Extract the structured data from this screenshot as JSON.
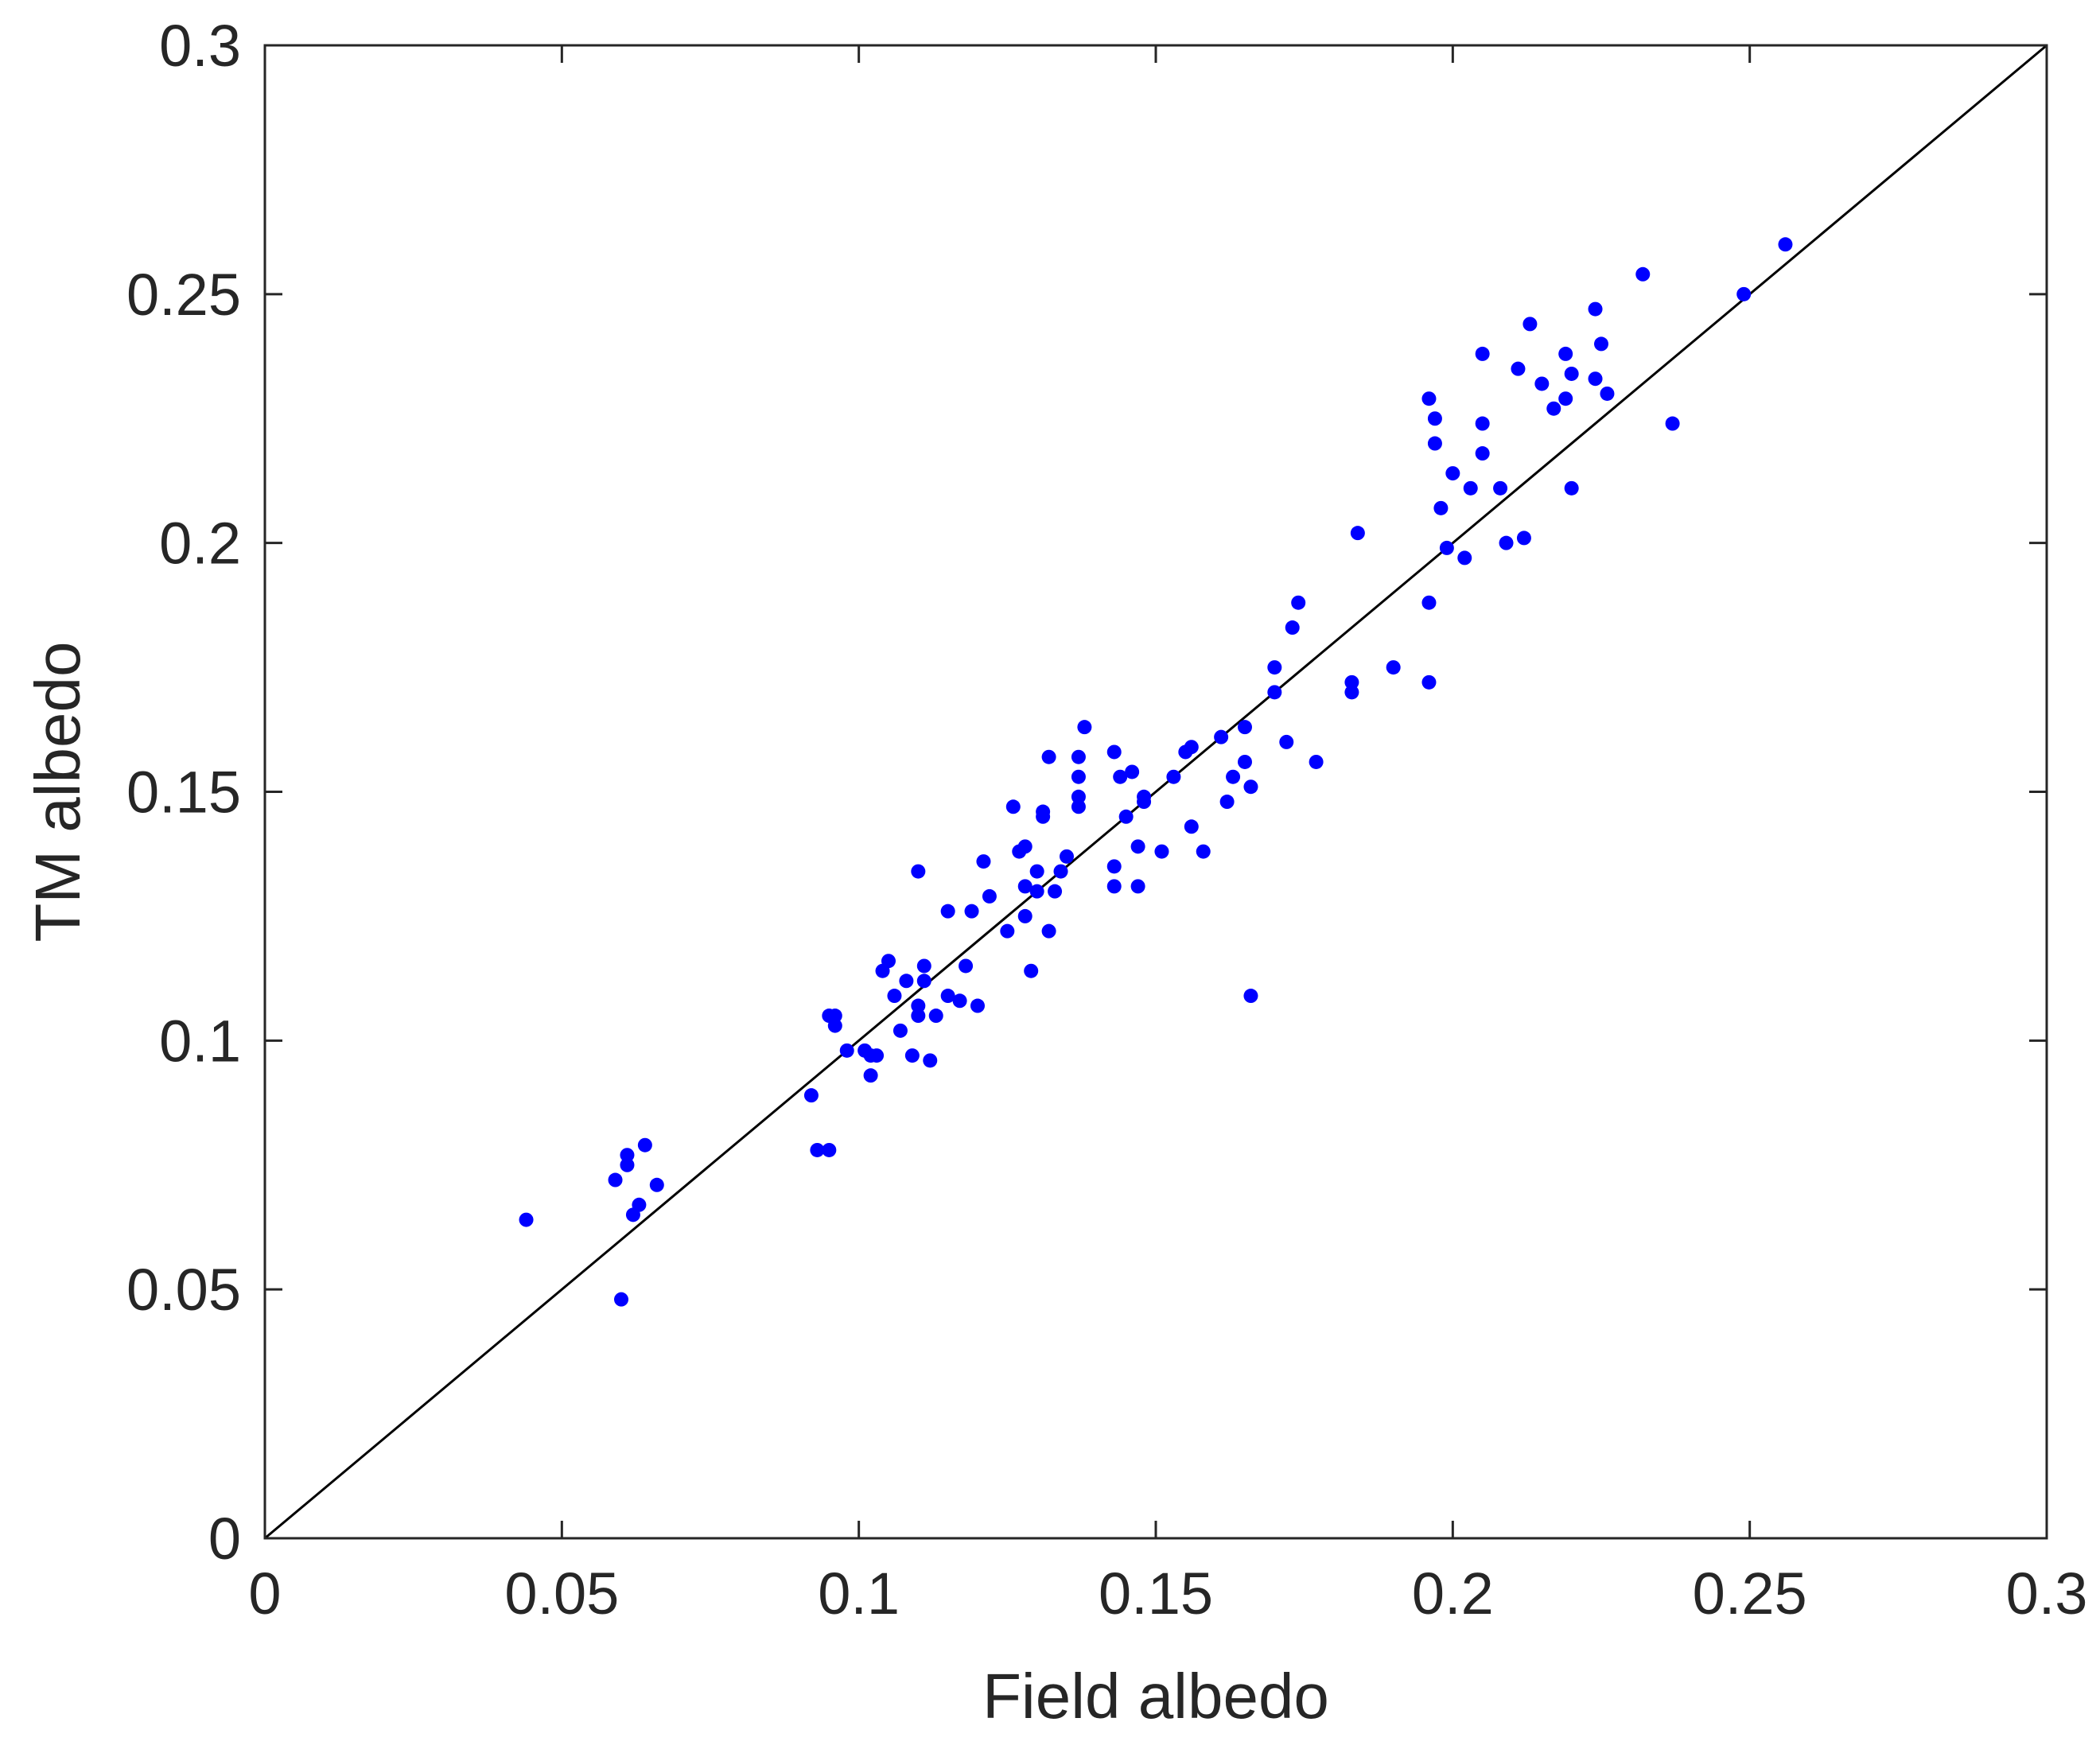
{
  "chart_data": {
    "type": "scatter",
    "xlabel": "Field albedo",
    "ylabel": "TM albedo",
    "xlim": [
      0,
      0.3
    ],
    "ylim": [
      0,
      0.3
    ],
    "xticks": [
      "0",
      "0.05",
      "0.1",
      "0.15",
      "0.2",
      "0.25",
      "0.3"
    ],
    "yticks": [
      "0",
      "0.05",
      "0.1",
      "0.15",
      "0.2",
      "0.25",
      "0.3"
    ],
    "grid": false,
    "marker_color": "#0000ff",
    "reference_line": {
      "x": [
        0,
        0.3
      ],
      "y": [
        0,
        0.3
      ],
      "color": "#000000"
    },
    "series": [
      {
        "points": [
          [
            0.044,
            0.064
          ],
          [
            0.059,
            0.072
          ],
          [
            0.06,
            0.048
          ],
          [
            0.061,
            0.075
          ],
          [
            0.061,
            0.077
          ],
          [
            0.062,
            0.065
          ],
          [
            0.063,
            0.067
          ],
          [
            0.064,
            0.079
          ],
          [
            0.066,
            0.071
          ],
          [
            0.092,
            0.089
          ],
          [
            0.093,
            0.078
          ],
          [
            0.095,
            0.078
          ],
          [
            0.095,
            0.105
          ],
          [
            0.096,
            0.103
          ],
          [
            0.096,
            0.105
          ],
          [
            0.098,
            0.098
          ],
          [
            0.101,
            0.098
          ],
          [
            0.102,
            0.097
          ],
          [
            0.102,
            0.093
          ],
          [
            0.103,
            0.097
          ],
          [
            0.104,
            0.114
          ],
          [
            0.105,
            0.116
          ],
          [
            0.106,
            0.109
          ],
          [
            0.107,
            0.102
          ],
          [
            0.108,
            0.112
          ],
          [
            0.109,
            0.097
          ],
          [
            0.11,
            0.107
          ],
          [
            0.11,
            0.105
          ],
          [
            0.11,
            0.134
          ],
          [
            0.111,
            0.112
          ],
          [
            0.111,
            0.115
          ],
          [
            0.112,
            0.096
          ],
          [
            0.113,
            0.105
          ],
          [
            0.115,
            0.126
          ],
          [
            0.115,
            0.109
          ],
          [
            0.117,
            0.108
          ],
          [
            0.118,
            0.115
          ],
          [
            0.119,
            0.126
          ],
          [
            0.12,
            0.107
          ],
          [
            0.121,
            0.136
          ],
          [
            0.122,
            0.129
          ],
          [
            0.125,
            0.122
          ],
          [
            0.126,
            0.147
          ],
          [
            0.127,
            0.138
          ],
          [
            0.128,
            0.131
          ],
          [
            0.128,
            0.139
          ],
          [
            0.128,
            0.125
          ],
          [
            0.129,
            0.114
          ],
          [
            0.13,
            0.13
          ],
          [
            0.13,
            0.134
          ],
          [
            0.131,
            0.146
          ],
          [
            0.131,
            0.145
          ],
          [
            0.132,
            0.122
          ],
          [
            0.132,
            0.157
          ],
          [
            0.133,
            0.13
          ],
          [
            0.134,
            0.134
          ],
          [
            0.135,
            0.137
          ],
          [
            0.137,
            0.147
          ],
          [
            0.137,
            0.149
          ],
          [
            0.137,
            0.153
          ],
          [
            0.137,
            0.157
          ],
          [
            0.138,
            0.163
          ],
          [
            0.143,
            0.158
          ],
          [
            0.143,
            0.135
          ],
          [
            0.143,
            0.131
          ],
          [
            0.144,
            0.153
          ],
          [
            0.145,
            0.145
          ],
          [
            0.146,
            0.154
          ],
          [
            0.147,
            0.131
          ],
          [
            0.147,
            0.139
          ],
          [
            0.148,
            0.148
          ],
          [
            0.148,
            0.149
          ],
          [
            0.151,
            0.138
          ],
          [
            0.153,
            0.153
          ],
          [
            0.155,
            0.158
          ],
          [
            0.156,
            0.159
          ],
          [
            0.156,
            0.143
          ],
          [
            0.158,
            0.138
          ],
          [
            0.161,
            0.161
          ],
          [
            0.162,
            0.148
          ],
          [
            0.163,
            0.153
          ],
          [
            0.165,
            0.163
          ],
          [
            0.165,
            0.156
          ],
          [
            0.166,
            0.151
          ],
          [
            0.166,
            0.109
          ],
          [
            0.17,
            0.175
          ],
          [
            0.17,
            0.17
          ],
          [
            0.172,
            0.16
          ],
          [
            0.173,
            0.183
          ],
          [
            0.174,
            0.188
          ],
          [
            0.177,
            0.156
          ],
          [
            0.183,
            0.17
          ],
          [
            0.183,
            0.172
          ],
          [
            0.184,
            0.202
          ],
          [
            0.19,
            0.175
          ],
          [
            0.196,
            0.188
          ],
          [
            0.196,
            0.172
          ],
          [
            0.196,
            0.229
          ],
          [
            0.197,
            0.22
          ],
          [
            0.197,
            0.225
          ],
          [
            0.198,
            0.207
          ],
          [
            0.199,
            0.199
          ],
          [
            0.2,
            0.214
          ],
          [
            0.202,
            0.197
          ],
          [
            0.203,
            0.211
          ],
          [
            0.205,
            0.224
          ],
          [
            0.205,
            0.218
          ],
          [
            0.205,
            0.238
          ],
          [
            0.208,
            0.211
          ],
          [
            0.209,
            0.2
          ],
          [
            0.211,
            0.235
          ],
          [
            0.212,
            0.201
          ],
          [
            0.213,
            0.244
          ],
          [
            0.215,
            0.232
          ],
          [
            0.217,
            0.227
          ],
          [
            0.219,
            0.238
          ],
          [
            0.219,
            0.229
          ],
          [
            0.22,
            0.234
          ],
          [
            0.22,
            0.211
          ],
          [
            0.224,
            0.233
          ],
          [
            0.224,
            0.247
          ],
          [
            0.225,
            0.24
          ],
          [
            0.226,
            0.23
          ],
          [
            0.232,
            0.254
          ],
          [
            0.237,
            0.224
          ],
          [
            0.249,
            0.25
          ],
          [
            0.256,
            0.26
          ]
        ]
      }
    ]
  }
}
